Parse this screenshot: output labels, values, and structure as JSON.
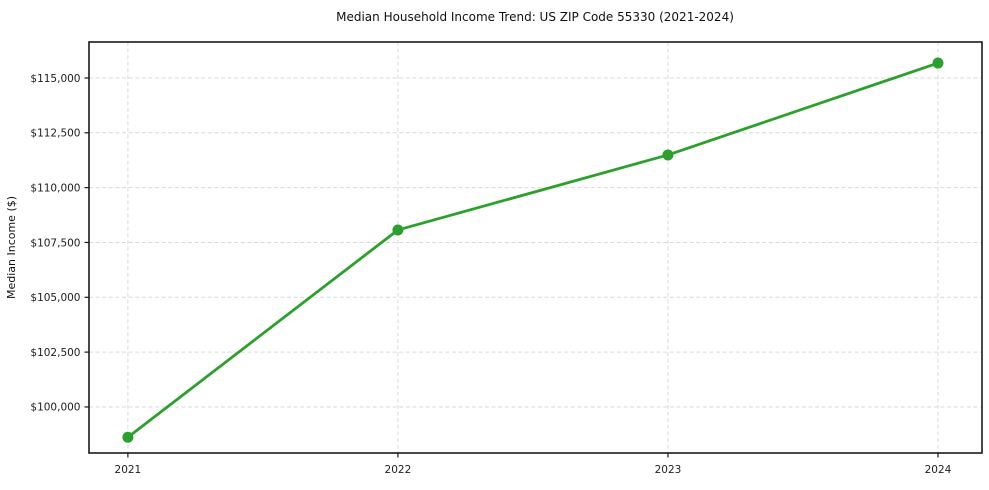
{
  "figure": {
    "title": "Median Household Income Trend: US ZIP Code 55330 (2021-2024)",
    "y_axis_label": "Median Income ($)"
  },
  "chart_data": {
    "type": "line",
    "title": "Median Household Income Trend: US ZIP Code 55330 (2021-2024)",
    "xlabel": "",
    "ylabel": "Median Income ($)",
    "categories": [
      2021,
      2022,
      2023,
      2024
    ],
    "values": [
      98620,
      108070,
      111490,
      115680
    ],
    "xticks": {
      "values": [
        2021,
        2022,
        2023,
        2024
      ],
      "labels": [
        "2021",
        "2022",
        "2023",
        "2024"
      ]
    },
    "yticks": {
      "values": [
        100000,
        102500,
        105000,
        107500,
        110000,
        112500,
        115000
      ],
      "labels": [
        "$100,000",
        "$102,500",
        "$105,000",
        "$107,500",
        "$110,000",
        "$112,500",
        "$115,000"
      ]
    },
    "xlim": [
      2020.856,
      2024.163
    ],
    "ylim": [
      97900,
      116640
    ],
    "grid": true,
    "grid_style": "dashed",
    "legend_position": "none",
    "line_color": "#2ca02c",
    "marker": "circle",
    "grid_color": "#d9d9d9",
    "spine_color": "#1a1a1a",
    "text_color": "#1d1d1d",
    "background_color": "#ffffff"
  }
}
